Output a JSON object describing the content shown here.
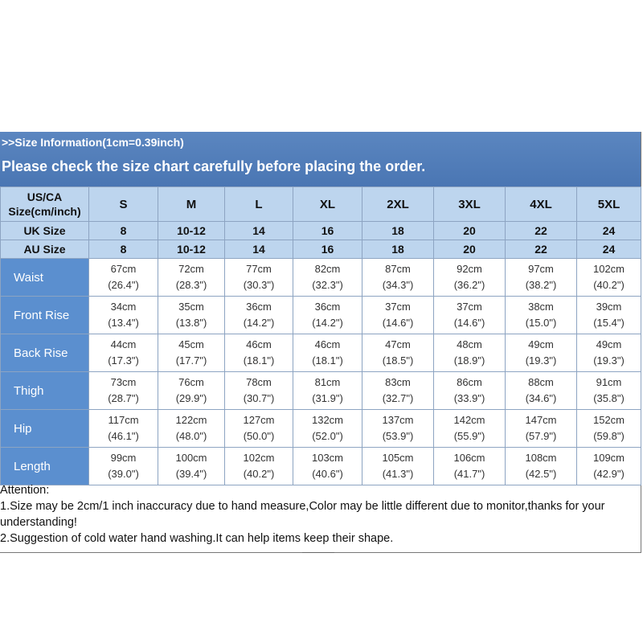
{
  "header": {
    "info": ">>Size Information(1cm=0.39inch)",
    "notice": "Please check the size chart carefully before placing the order."
  },
  "table": {
    "size_row_label_line1": "US/CA",
    "size_row_label_line2": "Size(cm/inch)",
    "sizes": [
      "S",
      "M",
      "L",
      "XL",
      "2XL",
      "3XL",
      "4XL",
      "5XL"
    ],
    "uk_label": "UK Size",
    "uk": [
      "8",
      "10-12",
      "14",
      "16",
      "18",
      "20",
      "22",
      "24"
    ],
    "au_label": "AU Size",
    "au": [
      "8",
      "10-12",
      "14",
      "16",
      "18",
      "20",
      "22",
      "24"
    ],
    "rows": [
      {
        "label": "Waist",
        "cm": [
          "67cm",
          "72cm",
          "77cm",
          "82cm",
          "87cm",
          "92cm",
          "97cm",
          "102cm"
        ],
        "in": [
          "(26.4\")",
          "(28.3\")",
          "(30.3\")",
          "(32.3\")",
          "(34.3\")",
          "(36.2\")",
          "(38.2\")",
          "(40.2\")"
        ]
      },
      {
        "label": "Front Rise",
        "cm": [
          "34cm",
          "35cm",
          "36cm",
          "36cm",
          "37cm",
          "37cm",
          "38cm",
          "39cm"
        ],
        "in": [
          "(13.4\")",
          "(13.8\")",
          "(14.2\")",
          "(14.2\")",
          "(14.6\")",
          "(14.6\")",
          "(15.0\")",
          "(15.4\")"
        ]
      },
      {
        "label": "Back Rise",
        "cm": [
          "44cm",
          "45cm",
          "46cm",
          "46cm",
          "47cm",
          "48cm",
          "49cm",
          "49cm"
        ],
        "in": [
          "(17.3\")",
          "(17.7\")",
          "(18.1\")",
          "(18.1\")",
          "(18.5\")",
          "(18.9\")",
          "(19.3\")",
          "(19.3\")"
        ]
      },
      {
        "label": "Thigh",
        "cm": [
          "73cm",
          "76cm",
          "78cm",
          "81cm",
          "83cm",
          "86cm",
          "88cm",
          "91cm"
        ],
        "in": [
          "(28.7\")",
          "(29.9\")",
          "(30.7\")",
          "(31.9\")",
          "(32.7\")",
          "(33.9\")",
          "(34.6\")",
          "(35.8\")"
        ]
      },
      {
        "label": "Hip",
        "cm": [
          "117cm",
          "122cm",
          "127cm",
          "132cm",
          "137cm",
          "142cm",
          "147cm",
          "152cm"
        ],
        "in": [
          "(46.1\")",
          "(48.0\")",
          "(50.0\")",
          "(52.0\")",
          "(53.9\")",
          "(55.9\")",
          "(57.9\")",
          "(59.8\")"
        ]
      },
      {
        "label": "Length",
        "cm": [
          "99cm",
          "100cm",
          "102cm",
          "103cm",
          "105cm",
          "106cm",
          "108cm",
          "109cm"
        ],
        "in": [
          "(39.0\")",
          "(39.4\")",
          "(40.2\")",
          "(40.6\")",
          "(41.3\")",
          "(41.7\")",
          "(42.5\")",
          "(42.9\")"
        ]
      }
    ]
  },
  "notes": {
    "title": "Attention:",
    "note1": "1.Size may be 2cm/1 inch inaccuracy due to hand measure,Color may be little different due to monitor,thanks for your understanding!",
    "note2": "2.Suggestion of cold water hand washing.It can help items keep their shape."
  },
  "colors": {
    "header_blue": "#4a76b3",
    "label_blue": "#5b8fcf",
    "light_blue": "#bdd5ee"
  }
}
